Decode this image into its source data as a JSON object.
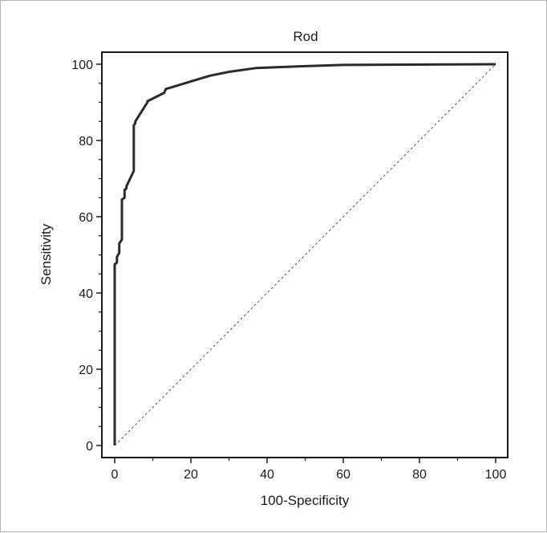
{
  "chart_data": {
    "type": "line",
    "title": "Rod",
    "xlabel": "100-Specificity",
    "ylabel": "Sensitivity",
    "xlim": [
      0,
      100
    ],
    "ylim": [
      0,
      100
    ],
    "xticks": [
      0,
      20,
      40,
      60,
      80,
      100
    ],
    "yticks": [
      0,
      20,
      40,
      60,
      80,
      100
    ],
    "xtick_labels": [
      "0",
      "20",
      "40",
      "60",
      "80",
      "100"
    ],
    "ytick_labels": [
      "0",
      "20",
      "40",
      "60",
      "80",
      "100"
    ],
    "grid": false,
    "legend": "none",
    "series": [
      {
        "kind": "roc-curve",
        "color": "#2a2a2a",
        "x": [
          0,
          0,
          0.6,
          0.6,
          1.2,
          1.2,
          1.9,
          1.9,
          2.6,
          2.6,
          3.1,
          3.1,
          5.0,
          5.0,
          5.4,
          5.4,
          8.6,
          8.6,
          13.0,
          13.4,
          20,
          25,
          30,
          37,
          50,
          60,
          100
        ],
        "y": [
          0,
          47.5,
          48,
          49.5,
          50.5,
          53,
          54,
          64.5,
          65,
          67,
          67.5,
          68,
          72,
          84,
          84.5,
          85,
          90,
          90.3,
          92.5,
          93.5,
          95.5,
          97,
          98,
          99,
          99.5,
          99.8,
          100
        ]
      },
      {
        "kind": "reference-diagonal",
        "color": "#555555",
        "dashed": true,
        "x": [
          0,
          100
        ],
        "y": [
          0,
          100
        ]
      }
    ]
  }
}
